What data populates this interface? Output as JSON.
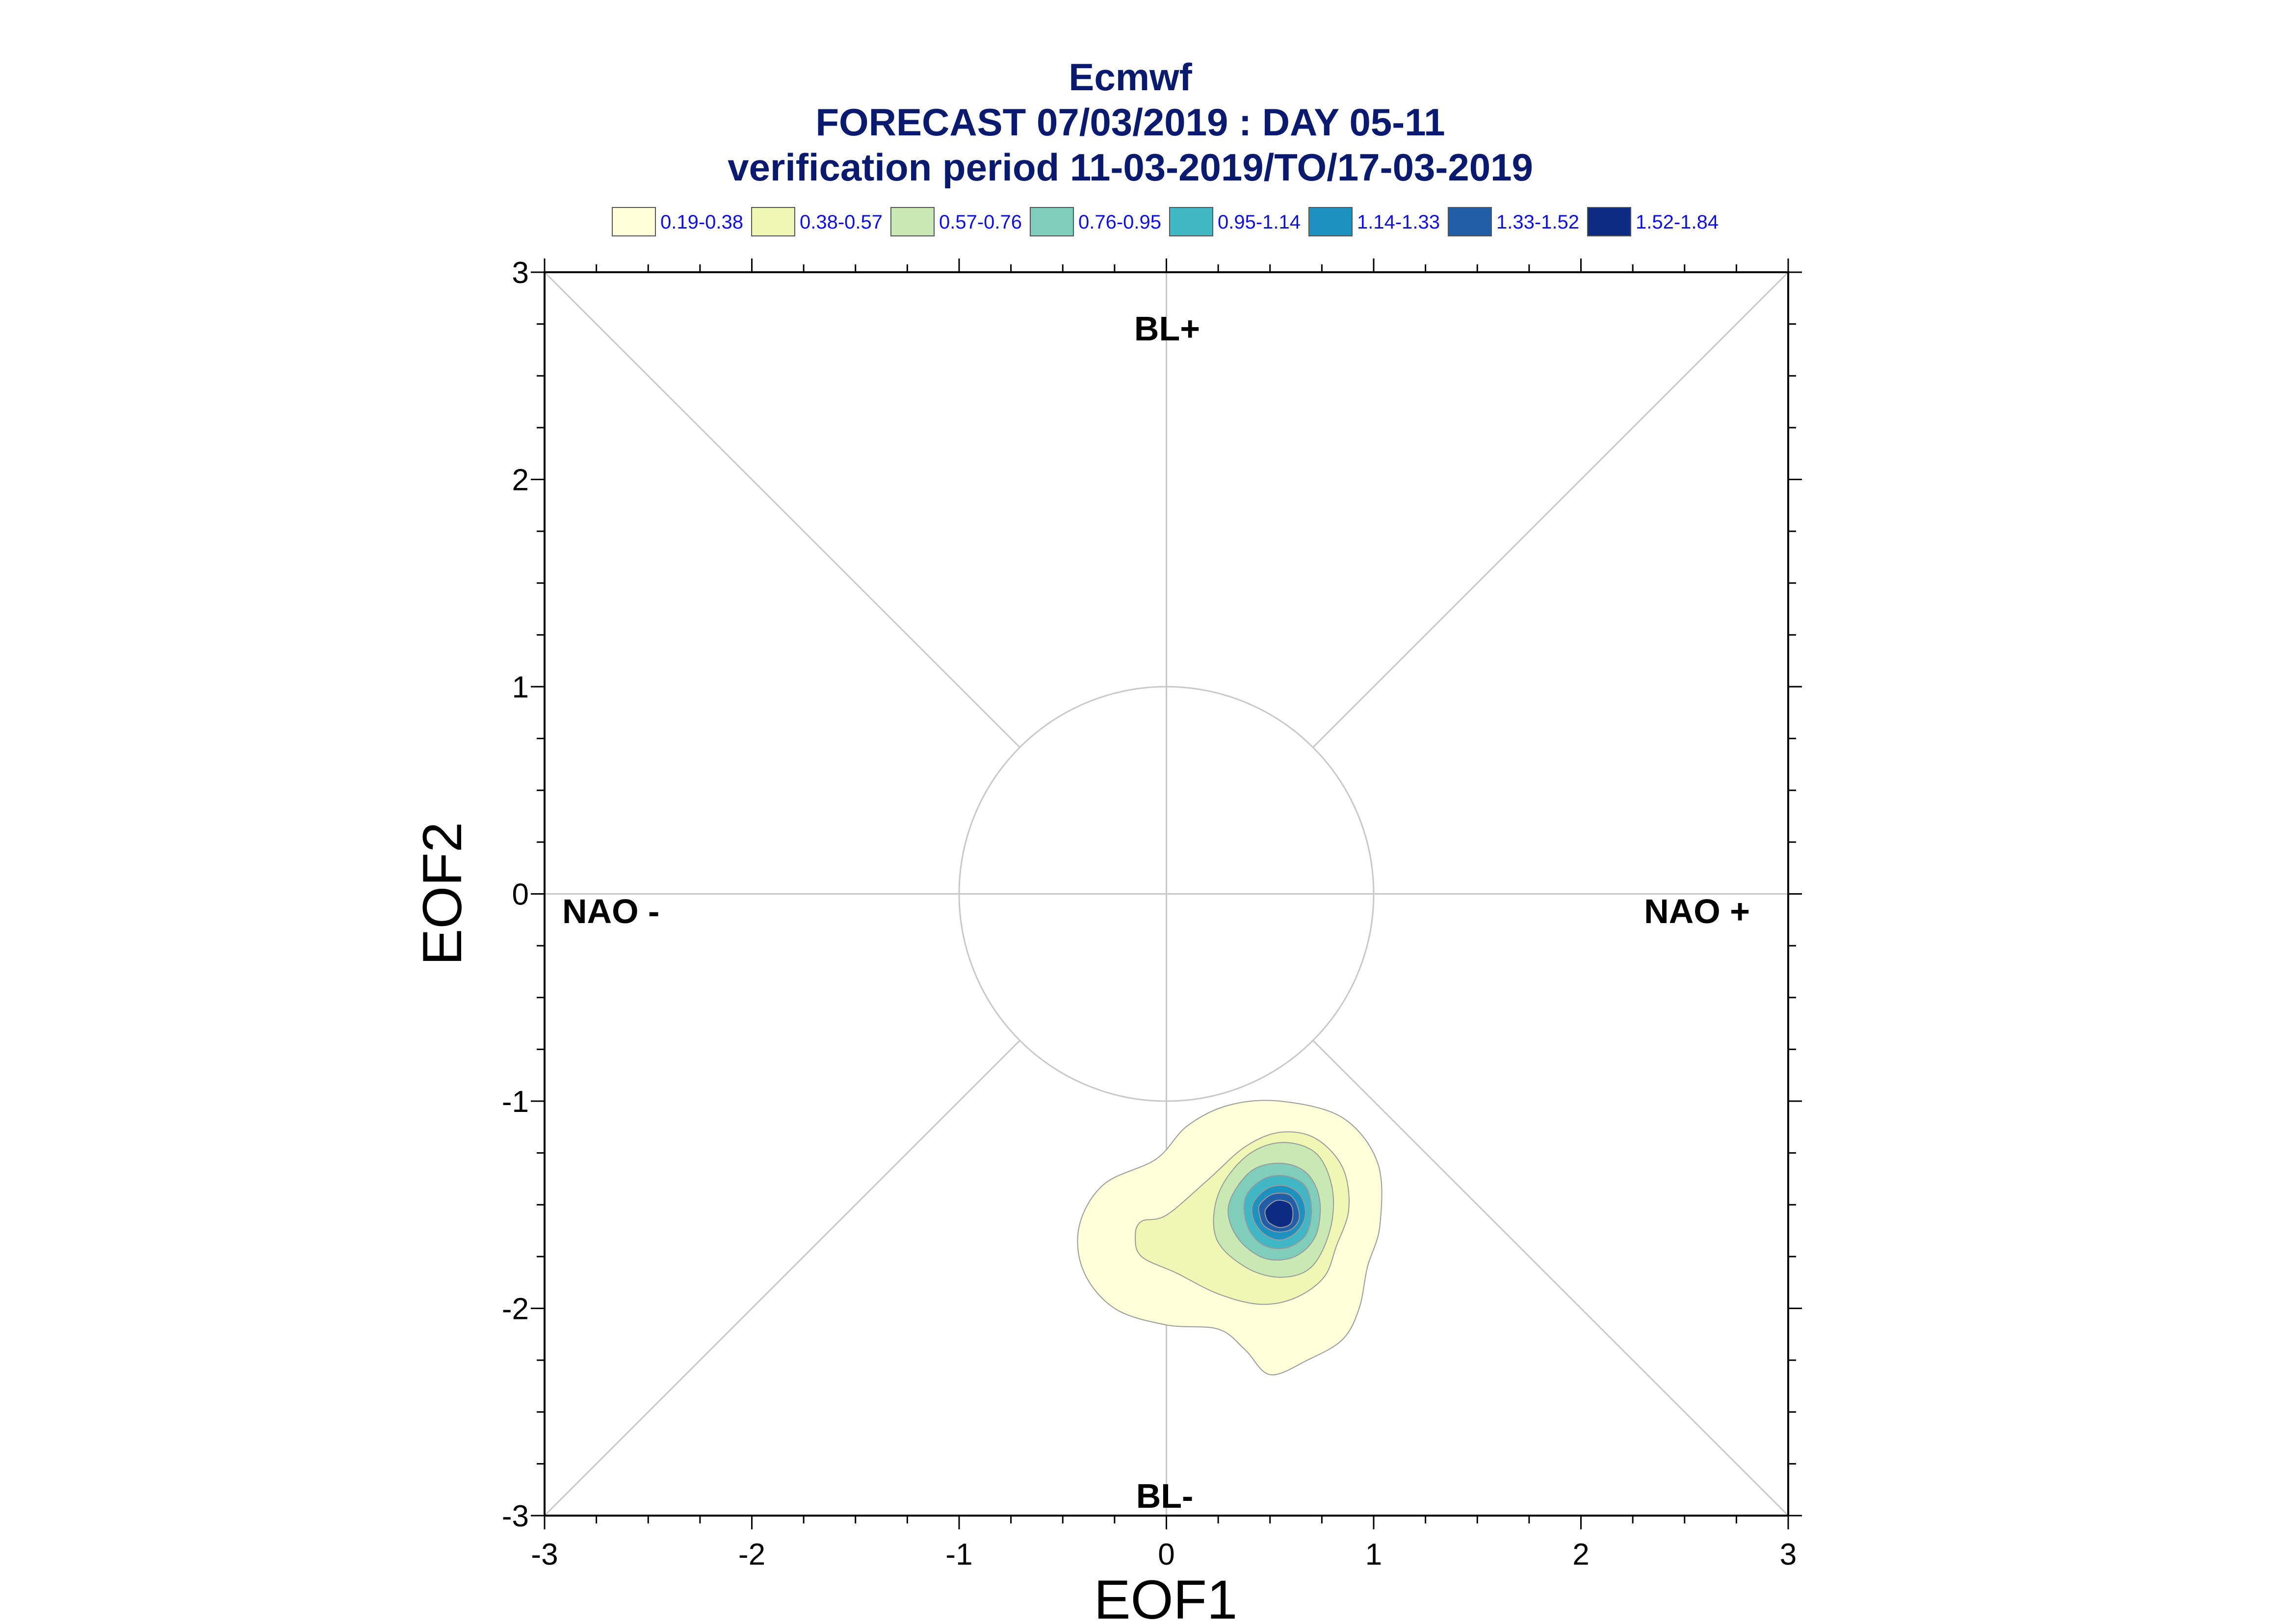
{
  "chart_data": {
    "type": "contour",
    "title": "Ecmwf",
    "subtitle": "FORECAST 07/03/2019 : DAY 05-11",
    "subtitle2": "verification period 11-03-2019/TO/17-03-2019",
    "xlabel": "EOF1",
    "ylabel": "EOF2",
    "xlim": [
      -3,
      3
    ],
    "ylim": [
      -3,
      3
    ],
    "xticks": [
      "-3",
      "-2",
      "-1",
      "0",
      "1",
      "2",
      "3"
    ],
    "yticks": [
      "-3",
      "-2",
      "-1",
      "0",
      "1",
      "2",
      "3"
    ],
    "grid": false,
    "reference_circle_radius": 1,
    "sector_labels": {
      "top": "BL+",
      "bottom": "BL-",
      "left": "NAO -",
      "right": "NAO +"
    },
    "legend": {
      "placement": "top",
      "entries": [
        {
          "label": "0.19-0.38",
          "color": "#ffffd9"
        },
        {
          "label": "0.38-0.57",
          "color": "#eef8b4"
        },
        {
          "label": "0.57-0.76",
          "color": "#c8e9b4"
        },
        {
          "label": "0.76-0.95",
          "color": "#7fcdbb"
        },
        {
          "label": "0.95-1.14",
          "color": "#41b6c4"
        },
        {
          "label": "1.14-1.33",
          "color": "#1d91c0"
        },
        {
          "label": "1.33-1.52",
          "color": "#225ea8"
        },
        {
          "label": "1.52-1.84",
          "color": "#0c2c84"
        }
      ]
    },
    "density_peak": {
      "x": 0.56,
      "y": -1.55,
      "value": 1.84
    },
    "contours": [
      {
        "level": 0.19,
        "color": "#ffffd9",
        "points": [
          [
            -0.05,
            -1.28
          ],
          [
            0.1,
            -1.12
          ],
          [
            0.3,
            -1.02
          ],
          [
            0.55,
            -1.0
          ],
          [
            0.85,
            -1.08
          ],
          [
            1.02,
            -1.3
          ],
          [
            1.03,
            -1.6
          ],
          [
            0.97,
            -1.8
          ],
          [
            0.93,
            -2.0
          ],
          [
            0.85,
            -2.15
          ],
          [
            0.68,
            -2.25
          ],
          [
            0.5,
            -2.32
          ],
          [
            0.38,
            -2.2
          ],
          [
            0.25,
            -2.1
          ],
          [
            0.0,
            -2.08
          ],
          [
            -0.25,
            -2.0
          ],
          [
            -0.4,
            -1.82
          ],
          [
            -0.42,
            -1.6
          ],
          [
            -0.3,
            -1.4
          ]
        ]
      },
      {
        "level": 0.38,
        "color": "#eef8b4",
        "points": [
          [
            -0.12,
            -1.58
          ],
          [
            0.0,
            -1.55
          ],
          [
            0.2,
            -1.38
          ],
          [
            0.38,
            -1.22
          ],
          [
            0.55,
            -1.15
          ],
          [
            0.72,
            -1.18
          ],
          [
            0.85,
            -1.32
          ],
          [
            0.88,
            -1.52
          ],
          [
            0.82,
            -1.7
          ],
          [
            0.76,
            -1.85
          ],
          [
            0.62,
            -1.95
          ],
          [
            0.45,
            -1.98
          ],
          [
            0.25,
            -1.93
          ],
          [
            0.05,
            -1.83
          ],
          [
            -0.12,
            -1.75
          ],
          [
            -0.15,
            -1.65
          ]
        ]
      },
      {
        "level": 0.57,
        "color": "#c8e9b4",
        "points": [
          [
            0.25,
            -1.45
          ],
          [
            0.38,
            -1.27
          ],
          [
            0.55,
            -1.2
          ],
          [
            0.72,
            -1.25
          ],
          [
            0.8,
            -1.42
          ],
          [
            0.79,
            -1.62
          ],
          [
            0.7,
            -1.8
          ],
          [
            0.55,
            -1.85
          ],
          [
            0.38,
            -1.8
          ],
          [
            0.24,
            -1.66
          ]
        ]
      },
      {
        "level": 0.76,
        "color": "#7fcdbb",
        "points": [
          [
            0.32,
            -1.45
          ],
          [
            0.42,
            -1.33
          ],
          [
            0.56,
            -1.3
          ],
          [
            0.68,
            -1.35
          ],
          [
            0.74,
            -1.48
          ],
          [
            0.72,
            -1.65
          ],
          [
            0.62,
            -1.75
          ],
          [
            0.48,
            -1.76
          ],
          [
            0.36,
            -1.68
          ],
          [
            0.3,
            -1.56
          ]
        ]
      },
      {
        "level": 0.95,
        "color": "#41b6c4",
        "points": [
          [
            0.38,
            -1.47
          ],
          [
            0.46,
            -1.38
          ],
          [
            0.57,
            -1.36
          ],
          [
            0.67,
            -1.41
          ],
          [
            0.7,
            -1.53
          ],
          [
            0.67,
            -1.65
          ],
          [
            0.57,
            -1.71
          ],
          [
            0.46,
            -1.69
          ],
          [
            0.39,
            -1.6
          ]
        ]
      },
      {
        "level": 1.14,
        "color": "#1d91c0",
        "points": [
          [
            0.42,
            -1.49
          ],
          [
            0.49,
            -1.42
          ],
          [
            0.58,
            -1.41
          ],
          [
            0.65,
            -1.46
          ],
          [
            0.67,
            -1.55
          ],
          [
            0.63,
            -1.63
          ],
          [
            0.55,
            -1.67
          ],
          [
            0.47,
            -1.64
          ],
          [
            0.42,
            -1.57
          ]
        ]
      },
      {
        "level": 1.33,
        "color": "#225ea8",
        "points": [
          [
            0.45,
            -1.5
          ],
          [
            0.51,
            -1.45
          ],
          [
            0.59,
            -1.45
          ],
          [
            0.63,
            -1.5
          ],
          [
            0.64,
            -1.57
          ],
          [
            0.6,
            -1.62
          ],
          [
            0.53,
            -1.63
          ],
          [
            0.47,
            -1.6
          ],
          [
            0.45,
            -1.55
          ]
        ]
      },
      {
        "level": 1.52,
        "color": "#0c2c84",
        "points": [
          [
            0.48,
            -1.52
          ],
          [
            0.53,
            -1.48
          ],
          [
            0.59,
            -1.49
          ],
          [
            0.61,
            -1.53
          ],
          [
            0.6,
            -1.59
          ],
          [
            0.55,
            -1.61
          ],
          [
            0.5,
            -1.59
          ],
          [
            0.48,
            -1.56
          ]
        ]
      }
    ]
  }
}
